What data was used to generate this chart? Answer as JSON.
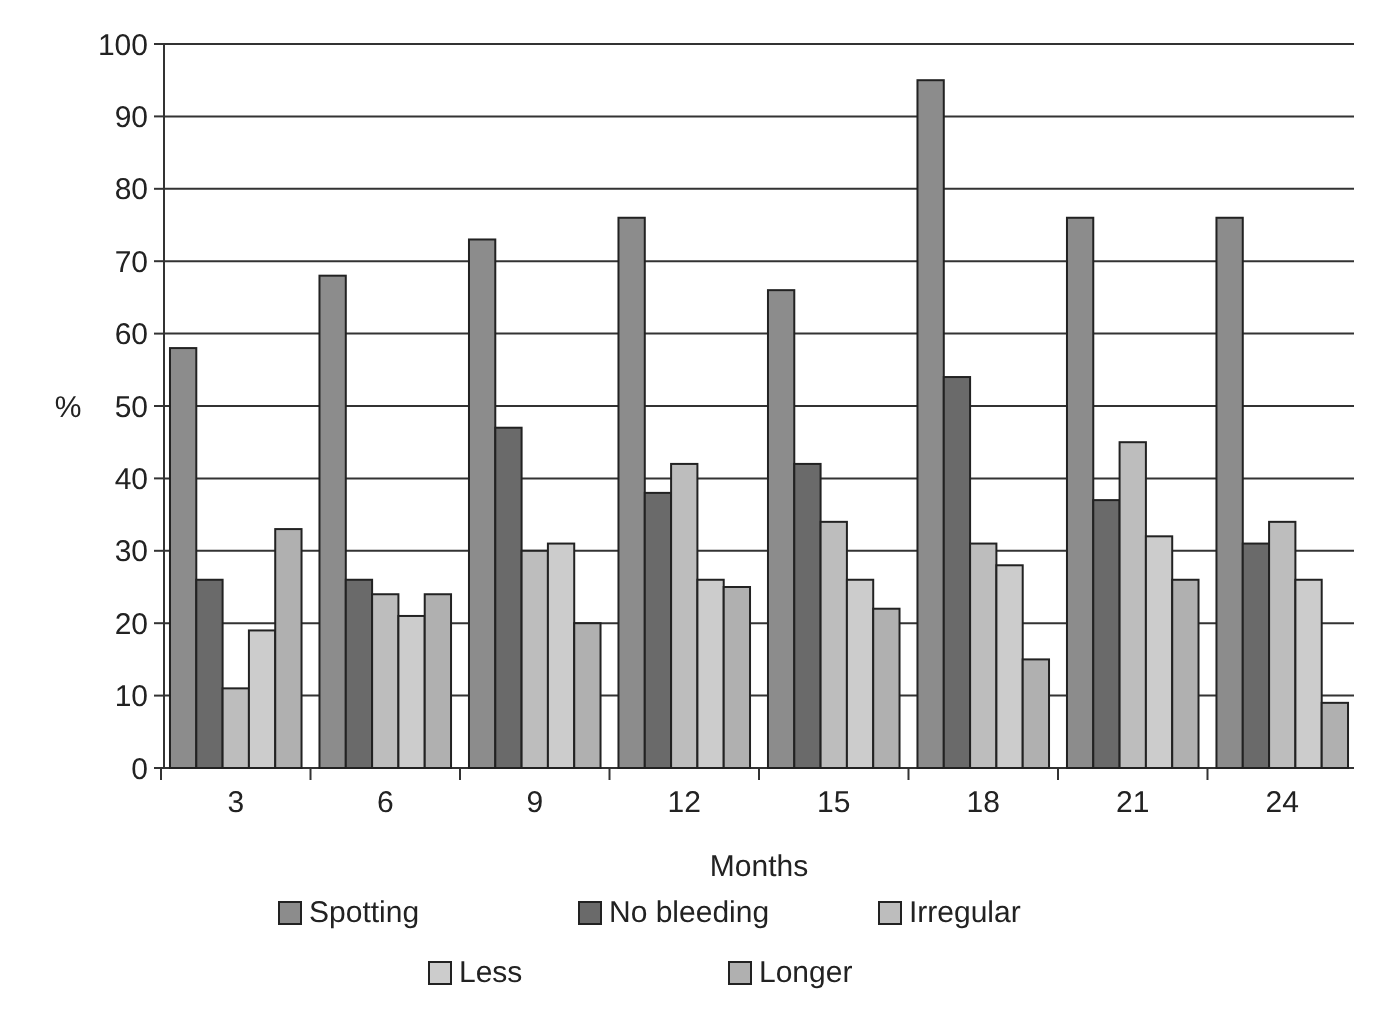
{
  "chart_data": {
    "type": "bar",
    "xlabel": "Months",
    "ylabel": "%",
    "categories": [
      "3",
      "6",
      "9",
      "12",
      "15",
      "18",
      "21",
      "24"
    ],
    "series": [
      {
        "name": "Spotting",
        "color": "#8c8c8c",
        "values": [
          58,
          68,
          73,
          76,
          66,
          95,
          76,
          76
        ]
      },
      {
        "name": "No bleeding",
        "color": "#6a6a6a",
        "values": [
          26,
          26,
          47,
          38,
          42,
          54,
          37,
          31
        ]
      },
      {
        "name": "Irregular",
        "color": "#bdbdbd",
        "values": [
          11,
          24,
          30,
          42,
          34,
          31,
          45,
          34
        ]
      },
      {
        "name": "Less",
        "color": "#cccccc",
        "values": [
          19,
          21,
          31,
          26,
          26,
          28,
          32,
          26
        ]
      },
      {
        "name": "Longer",
        "color": "#b0b0b0",
        "values": [
          33,
          24,
          20,
          25,
          22,
          15,
          26,
          9
        ]
      }
    ],
    "ylim": [
      0,
      100
    ],
    "yticks": [
      0,
      10,
      20,
      30,
      40,
      50,
      60,
      70,
      80,
      90,
      100
    ],
    "grid": "y",
    "legend": "bottom"
  }
}
